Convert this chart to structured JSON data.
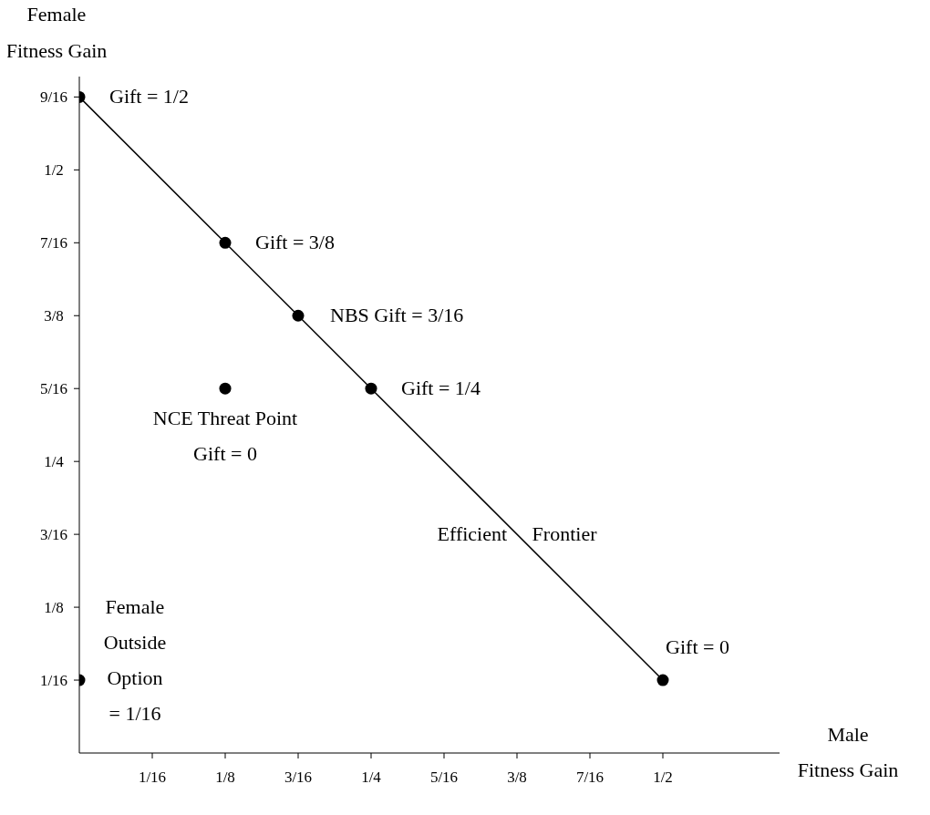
{
  "chart_data": {
    "type": "scatter",
    "xlabel": "Male\nFitness Gain",
    "ylabel": "Female\nFitness Gain",
    "xlim": [
      0,
      0.6
    ],
    "ylim": [
      0,
      0.58
    ],
    "xticks": [
      {
        "value": 0.0625,
        "label": "1/16"
      },
      {
        "value": 0.125,
        "label": "1/8"
      },
      {
        "value": 0.1875,
        "label": "3/16"
      },
      {
        "value": 0.25,
        "label": "1/4"
      },
      {
        "value": 0.3125,
        "label": "5/16"
      },
      {
        "value": 0.375,
        "label": "3/8"
      },
      {
        "value": 0.4375,
        "label": "7/16"
      },
      {
        "value": 0.5,
        "label": "1/2"
      }
    ],
    "yticks": [
      {
        "value": 0.0625,
        "label": "1/16"
      },
      {
        "value": 0.125,
        "label": "1/8"
      },
      {
        "value": 0.1875,
        "label": "3/16"
      },
      {
        "value": 0.25,
        "label": "1/4"
      },
      {
        "value": 0.3125,
        "label": "5/16"
      },
      {
        "value": 0.375,
        "label": "3/8"
      },
      {
        "value": 0.4375,
        "label": "7/16"
      },
      {
        "value": 0.5,
        "label": "1/2"
      },
      {
        "value": 0.5625,
        "label": "9/16"
      }
    ],
    "grid": false,
    "legend": false,
    "series": [
      {
        "type": "scatter",
        "color": "#000000",
        "marker": "circle",
        "x": [
          0,
          0.125,
          0.1875,
          0.25,
          0.5,
          0.125,
          0
        ],
        "values": [
          0.5625,
          0.4375,
          0.375,
          0.3125,
          0.0625,
          0.3125,
          0.0625
        ]
      },
      {
        "type": "line",
        "color": "#000000",
        "x": [
          0,
          0.5
        ],
        "values": [
          0.5625,
          0.0625
        ],
        "line_style": "solid"
      }
    ],
    "annotations": [
      {
        "text": "Gift = 1/2",
        "x": 0,
        "y": 0.5625
      },
      {
        "text": "Gift = 3/8",
        "x": 0.125,
        "y": 0.4375
      },
      {
        "text": "NBS Gift = 3/16",
        "x": 0.1875,
        "y": 0.375
      },
      {
        "text": "Gift = 1/4",
        "x": 0.25,
        "y": 0.3125
      },
      {
        "text": "NCE Threat Point\nGift = 0",
        "x": 0.125,
        "y": 0.3125
      },
      {
        "text": "Efficient Frontier",
        "x": 0.375,
        "y": 0.1875
      },
      {
        "text": "Gift = 0",
        "x": 0.5,
        "y": 0.0625
      },
      {
        "text": "Female\nOutside\nOption\n= 1/16",
        "x": 0,
        "y": 0.0625
      }
    ]
  }
}
